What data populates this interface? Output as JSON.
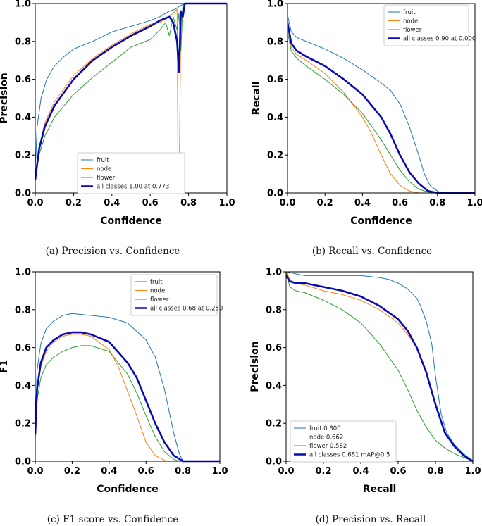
{
  "colors": {
    "fruit": "#1f77b4",
    "node": "#ff7f0e",
    "flower": "#2ca02c",
    "all": "#0a0ab4"
  },
  "captions": [
    "(a) Precision vs. Confidence",
    "(b) Recall vs. Confidence",
    "(c) F1-score vs. Confidence",
    "(d) Precision vs. Recall"
  ],
  "chart_data": [
    {
      "id": "a",
      "type": "line",
      "xlabel": "Confidence",
      "ylabel": "Precision",
      "xlim": [
        0,
        1
      ],
      "ylim": [
        0,
        1
      ],
      "xticks": [
        "0.0",
        "0.2",
        "0.4",
        "0.6",
        "0.8",
        "1.0"
      ],
      "yticks": [
        "0.0",
        "0.2",
        "0.4",
        "0.6",
        "0.8",
        "1.0"
      ],
      "legend_position": "lower-center",
      "series": [
        {
          "name": "fruit",
          "color": "#1f77b4",
          "width": 1,
          "x": [
            0,
            0.01,
            0.03,
            0.06,
            0.1,
            0.15,
            0.2,
            0.3,
            0.4,
            0.5,
            0.6,
            0.65,
            0.7,
            0.73,
            0.76,
            0.78,
            0.8,
            1.0
          ],
          "y": [
            0.12,
            0.35,
            0.5,
            0.6,
            0.67,
            0.72,
            0.76,
            0.8,
            0.85,
            0.88,
            0.91,
            0.93,
            0.96,
            0.97,
            0.99,
            1.0,
            1.0,
            1.0
          ]
        },
        {
          "name": "node",
          "color": "#ff7f0e",
          "width": 1,
          "x": [
            0,
            0.02,
            0.05,
            0.1,
            0.2,
            0.3,
            0.4,
            0.5,
            0.6,
            0.65,
            0.7,
            0.72,
            0.74,
            0.745,
            0.75,
            0.76,
            0.78,
            0.8,
            1.0
          ],
          "y": [
            0.08,
            0.24,
            0.37,
            0.48,
            0.62,
            0.71,
            0.78,
            0.84,
            0.89,
            0.9,
            0.93,
            0.95,
            0.97,
            0.1,
            0.0,
            0.9,
            1.0,
            1.0,
            1.0
          ]
        },
        {
          "name": "flower",
          "color": "#2ca02c",
          "width": 1,
          "x": [
            0,
            0.02,
            0.05,
            0.1,
            0.2,
            0.3,
            0.4,
            0.5,
            0.6,
            0.65,
            0.68,
            0.7,
            0.72,
            0.74,
            0.75,
            0.76,
            0.77,
            0.78,
            0.8,
            1.0
          ],
          "y": [
            0.08,
            0.2,
            0.3,
            0.4,
            0.52,
            0.61,
            0.69,
            0.77,
            0.81,
            0.86,
            0.9,
            0.83,
            0.93,
            0.86,
            0.95,
            0.75,
            0.99,
            1.0,
            1.0,
            1.0
          ]
        },
        {
          "name": "all classes 1.00 at 0.773",
          "color": "#0a0ab4",
          "width": 2.6,
          "x": [
            0,
            0.02,
            0.05,
            0.1,
            0.2,
            0.3,
            0.4,
            0.5,
            0.6,
            0.65,
            0.7,
            0.72,
            0.74,
            0.75,
            0.76,
            0.77,
            0.78,
            0.8,
            1.0
          ],
          "y": [
            0.07,
            0.23,
            0.35,
            0.46,
            0.6,
            0.7,
            0.77,
            0.83,
            0.88,
            0.91,
            0.93,
            0.9,
            0.8,
            0.64,
            0.96,
            0.93,
            1.0,
            1.0,
            1.0
          ]
        }
      ]
    },
    {
      "id": "b",
      "type": "line",
      "xlabel": "Confidence",
      "ylabel": "Recall",
      "xlim": [
        0,
        1
      ],
      "ylim": [
        0,
        1
      ],
      "xticks": [
        "0.0",
        "0.2",
        "0.4",
        "0.6",
        "0.8",
        "1.0"
      ],
      "yticks": [
        "0.0",
        "0.2",
        "0.4",
        "0.6",
        "0.8",
        "1.0"
      ],
      "legend_position": "top-right",
      "series": [
        {
          "name": "fruit",
          "color": "#1f77b4",
          "width": 1,
          "x": [
            0,
            0.02,
            0.05,
            0.1,
            0.2,
            0.3,
            0.4,
            0.5,
            0.55,
            0.6,
            0.65,
            0.7,
            0.73,
            0.76,
            0.8,
            0.82,
            1.0
          ],
          "y": [
            0.94,
            0.85,
            0.82,
            0.8,
            0.76,
            0.71,
            0.65,
            0.58,
            0.54,
            0.47,
            0.35,
            0.2,
            0.1,
            0.04,
            0.01,
            0.0,
            0.0
          ]
        },
        {
          "name": "node",
          "color": "#ff7f0e",
          "width": 1,
          "x": [
            0,
            0.02,
            0.05,
            0.1,
            0.2,
            0.3,
            0.4,
            0.45,
            0.5,
            0.55,
            0.6,
            0.65,
            0.7,
            0.72,
            1.0
          ],
          "y": [
            0.88,
            0.77,
            0.73,
            0.7,
            0.63,
            0.53,
            0.4,
            0.31,
            0.2,
            0.1,
            0.04,
            0.01,
            0.0,
            0.0,
            0.0
          ]
        },
        {
          "name": "flower",
          "color": "#2ca02c",
          "width": 1,
          "x": [
            0,
            0.02,
            0.05,
            0.1,
            0.2,
            0.3,
            0.4,
            0.5,
            0.55,
            0.6,
            0.65,
            0.7,
            0.75,
            0.78,
            1.0
          ],
          "y": [
            0.85,
            0.75,
            0.71,
            0.67,
            0.6,
            0.52,
            0.42,
            0.28,
            0.2,
            0.12,
            0.06,
            0.02,
            0.005,
            0.0,
            0.0
          ]
        },
        {
          "name": "all classes 0.90 at 0.000",
          "color": "#0a0ab4",
          "width": 2.6,
          "x": [
            0,
            0.02,
            0.05,
            0.1,
            0.2,
            0.3,
            0.4,
            0.5,
            0.55,
            0.6,
            0.65,
            0.7,
            0.75,
            0.8,
            1.0
          ],
          "y": [
            0.9,
            0.79,
            0.75,
            0.72,
            0.67,
            0.6,
            0.52,
            0.4,
            0.31,
            0.2,
            0.11,
            0.05,
            0.01,
            0.0,
            0.0
          ]
        }
      ]
    },
    {
      "id": "c",
      "type": "line",
      "xlabel": "Confidence",
      "ylabel": "F1",
      "xlim": [
        0,
        1
      ],
      "ylim": [
        0,
        1
      ],
      "xticks": [
        "0.0",
        "0.2",
        "0.4",
        "0.6",
        "0.8",
        "1.0"
      ],
      "yticks": [
        "0.0",
        "0.2",
        "0.4",
        "0.6",
        "0.8",
        "1.0"
      ],
      "legend_position": "top-right",
      "series": [
        {
          "name": "fruit",
          "color": "#1f77b4",
          "width": 1,
          "x": [
            0,
            0.01,
            0.03,
            0.06,
            0.1,
            0.15,
            0.2,
            0.3,
            0.4,
            0.5,
            0.6,
            0.65,
            0.7,
            0.75,
            0.78,
            0.8,
            1.0
          ],
          "y": [
            0.2,
            0.48,
            0.62,
            0.7,
            0.74,
            0.77,
            0.78,
            0.77,
            0.76,
            0.73,
            0.64,
            0.55,
            0.38,
            0.15,
            0.04,
            0.0,
            0.0
          ]
        },
        {
          "name": "node",
          "color": "#ff7f0e",
          "width": 1,
          "x": [
            0,
            0.01,
            0.03,
            0.06,
            0.1,
            0.15,
            0.2,
            0.25,
            0.3,
            0.4,
            0.45,
            0.5,
            0.55,
            0.6,
            0.65,
            0.7,
            0.72,
            1.0
          ],
          "y": [
            0.12,
            0.36,
            0.5,
            0.58,
            0.63,
            0.66,
            0.67,
            0.67,
            0.66,
            0.59,
            0.5,
            0.37,
            0.24,
            0.1,
            0.03,
            0.005,
            0.0,
            0.0
          ]
        },
        {
          "name": "flower",
          "color": "#2ca02c",
          "width": 1,
          "x": [
            0,
            0.01,
            0.03,
            0.06,
            0.1,
            0.15,
            0.2,
            0.25,
            0.3,
            0.4,
            0.5,
            0.55,
            0.6,
            0.65,
            0.7,
            0.75,
            0.78,
            1.0
          ],
          "y": [
            0.12,
            0.32,
            0.44,
            0.51,
            0.55,
            0.58,
            0.6,
            0.61,
            0.61,
            0.58,
            0.46,
            0.36,
            0.24,
            0.13,
            0.05,
            0.01,
            0.0,
            0.0
          ]
        },
        {
          "name": "all classes 0.68 at 0.250",
          "color": "#0a0ab4",
          "width": 2.6,
          "x": [
            0,
            0.01,
            0.03,
            0.06,
            0.1,
            0.15,
            0.2,
            0.25,
            0.3,
            0.4,
            0.5,
            0.55,
            0.6,
            0.65,
            0.7,
            0.75,
            0.8,
            1.0
          ],
          "y": [
            0.14,
            0.38,
            0.52,
            0.6,
            0.64,
            0.67,
            0.68,
            0.68,
            0.67,
            0.63,
            0.52,
            0.44,
            0.32,
            0.2,
            0.1,
            0.03,
            0.0,
            0.0
          ]
        }
      ]
    },
    {
      "id": "d",
      "type": "line",
      "xlabel": "Recall",
      "ylabel": "Precision",
      "xlim": [
        0,
        1
      ],
      "ylim": [
        0,
        1
      ],
      "xticks": [
        "0.0",
        "0.2",
        "0.4",
        "0.6",
        "0.8",
        "1.0"
      ],
      "yticks": [
        "0.0",
        "0.2",
        "0.4",
        "0.6",
        "0.8",
        "1.0"
      ],
      "legend_position": "lower-left",
      "series": [
        {
          "name": "fruit 0.800",
          "color": "#1f77b4",
          "width": 1,
          "x": [
            0,
            0.05,
            0.1,
            0.2,
            0.3,
            0.4,
            0.5,
            0.55,
            0.6,
            0.65,
            0.7,
            0.72,
            0.75,
            0.78,
            0.8,
            0.83,
            0.86,
            0.9,
            0.95,
            1.0
          ],
          "y": [
            1.0,
            0.99,
            0.98,
            0.98,
            0.98,
            0.98,
            0.97,
            0.96,
            0.94,
            0.91,
            0.86,
            0.82,
            0.74,
            0.62,
            0.45,
            0.25,
            0.15,
            0.09,
            0.04,
            0.0
          ]
        },
        {
          "name": "node 0.662",
          "color": "#ff7f0e",
          "width": 1,
          "x": [
            0,
            0.02,
            0.05,
            0.1,
            0.2,
            0.3,
            0.4,
            0.5,
            0.6,
            0.65,
            0.7,
            0.75,
            0.8,
            0.85,
            0.9,
            0.95,
            1.0
          ],
          "y": [
            1.0,
            0.96,
            0.94,
            0.93,
            0.9,
            0.88,
            0.85,
            0.8,
            0.73,
            0.67,
            0.6,
            0.48,
            0.3,
            0.15,
            0.08,
            0.03,
            0.0
          ]
        },
        {
          "name": "flower 0.582",
          "color": "#2ca02c",
          "width": 1,
          "x": [
            0,
            0.02,
            0.05,
            0.1,
            0.2,
            0.3,
            0.4,
            0.5,
            0.55,
            0.6,
            0.65,
            0.7,
            0.75,
            0.8,
            0.85,
            0.9,
            0.95,
            1.0
          ],
          "y": [
            1.0,
            0.92,
            0.9,
            0.89,
            0.85,
            0.8,
            0.73,
            0.62,
            0.55,
            0.48,
            0.38,
            0.27,
            0.18,
            0.11,
            0.07,
            0.04,
            0.02,
            0.0
          ]
        },
        {
          "name": "all classes 0.681 mAP@0.5",
          "color": "#0a0ab4",
          "width": 2.6,
          "x": [
            0,
            0.02,
            0.05,
            0.1,
            0.2,
            0.3,
            0.4,
            0.5,
            0.6,
            0.65,
            0.7,
            0.75,
            0.8,
            0.85,
            0.9,
            0.95,
            1.0
          ],
          "y": [
            0.98,
            0.95,
            0.94,
            0.94,
            0.92,
            0.9,
            0.87,
            0.82,
            0.75,
            0.69,
            0.6,
            0.47,
            0.3,
            0.15,
            0.08,
            0.03,
            0.0
          ]
        }
      ]
    }
  ]
}
